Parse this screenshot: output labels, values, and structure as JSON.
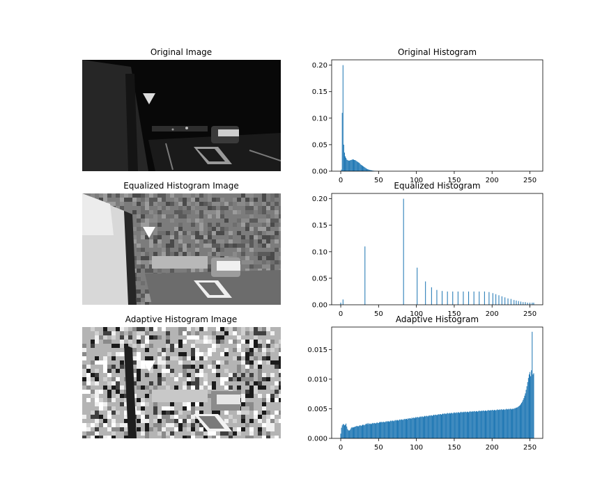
{
  "figure": {
    "image_titles": [
      "Original Image",
      "Equalized Histogram Image",
      "Adaptive Histogram Image"
    ],
    "bar_color": "#1f77b4"
  },
  "chart_data": [
    {
      "type": "bar",
      "title": "Original Histogram",
      "xlabel": "",
      "ylabel": "",
      "xlim": [
        -12,
        267
      ],
      "ylim": [
        0,
        0.21
      ],
      "xticks": [
        0,
        50,
        100,
        150,
        200,
        250
      ],
      "yticks": [
        0.0,
        0.05,
        0.1,
        0.15,
        0.2
      ],
      "ytick_format": 2,
      "bars": [
        [
          1,
          0.003
        ],
        [
          2,
          0.11
        ],
        [
          3,
          0.2
        ],
        [
          4,
          0.05
        ],
        [
          5,
          0.035
        ],
        [
          6,
          0.028
        ],
        [
          7,
          0.025
        ],
        [
          8,
          0.022
        ],
        [
          9,
          0.021
        ],
        [
          10,
          0.02
        ],
        [
          11,
          0.02
        ],
        [
          12,
          0.02
        ],
        [
          13,
          0.021
        ],
        [
          14,
          0.021
        ],
        [
          15,
          0.022
        ],
        [
          16,
          0.022
        ],
        [
          17,
          0.022
        ],
        [
          18,
          0.021
        ],
        [
          19,
          0.021
        ],
        [
          20,
          0.02
        ],
        [
          21,
          0.019
        ],
        [
          22,
          0.018
        ],
        [
          23,
          0.017
        ],
        [
          24,
          0.016
        ],
        [
          25,
          0.015
        ],
        [
          26,
          0.013
        ],
        [
          27,
          0.012
        ],
        [
          28,
          0.011
        ],
        [
          29,
          0.01
        ],
        [
          30,
          0.009
        ],
        [
          31,
          0.008
        ],
        [
          32,
          0.007
        ],
        [
          33,
          0.006
        ],
        [
          34,
          0.005
        ],
        [
          35,
          0.004
        ],
        [
          36,
          0.0035
        ],
        [
          37,
          0.003
        ],
        [
          38,
          0.0025
        ],
        [
          39,
          0.002
        ],
        [
          40,
          0.0018
        ],
        [
          41,
          0.0015
        ],
        [
          42,
          0.0012
        ],
        [
          43,
          0.001
        ],
        [
          44,
          0.0008
        ],
        [
          45,
          0.0006
        ],
        [
          46,
          0.0005
        ],
        [
          47,
          0.0004
        ],
        [
          48,
          0.0003
        ],
        [
          49,
          0.0002
        ],
        [
          50,
          0.0002
        ]
      ]
    },
    {
      "type": "bar",
      "title": "Equalized Histogram",
      "xlabel": "",
      "ylabel": "",
      "xlim": [
        -12,
        267
      ],
      "ylim": [
        0,
        0.21
      ],
      "xticks": [
        0,
        50,
        100,
        150,
        200,
        250
      ],
      "yticks": [
        0.0,
        0.05,
        0.1,
        0.15,
        0.2
      ],
      "ytick_format": 2,
      "bars": [
        [
          0,
          0.004
        ],
        [
          3,
          0.01
        ],
        [
          32,
          0.11
        ],
        [
          83,
          0.2
        ],
        [
          101,
          0.07
        ],
        [
          112,
          0.044
        ],
        [
          120,
          0.033
        ],
        [
          127,
          0.028
        ],
        [
          134,
          0.026
        ],
        [
          141,
          0.025
        ],
        [
          148,
          0.025
        ],
        [
          155,
          0.025
        ],
        [
          162,
          0.025
        ],
        [
          169,
          0.025
        ],
        [
          176,
          0.025
        ],
        [
          183,
          0.025
        ],
        [
          190,
          0.025
        ],
        [
          196,
          0.024
        ],
        [
          201,
          0.022
        ],
        [
          205,
          0.02
        ],
        [
          209,
          0.018
        ],
        [
          213,
          0.016
        ],
        [
          217,
          0.014
        ],
        [
          221,
          0.012
        ],
        [
          225,
          0.011
        ],
        [
          229,
          0.009
        ],
        [
          232,
          0.008
        ],
        [
          235,
          0.007
        ],
        [
          238,
          0.006
        ],
        [
          241,
          0.005
        ],
        [
          244,
          0.005
        ],
        [
          247,
          0.004
        ],
        [
          250,
          0.004
        ],
        [
          253,
          0.004
        ],
        [
          255,
          0.004
        ]
      ]
    },
    {
      "type": "bar",
      "title": "Adaptive Histogram",
      "xlabel": "",
      "ylabel": "",
      "xlim": [
        -12,
        267
      ],
      "ylim": [
        0,
        0.0188
      ],
      "xticks": [
        0,
        50,
        100,
        150,
        200,
        250
      ],
      "yticks": [
        0.0,
        0.005,
        0.01,
        0.015
      ],
      "ytick_format": 3,
      "bars": [
        [
          0,
          0.0008
        ],
        [
          1,
          0.0018
        ],
        [
          2,
          0.0022
        ],
        [
          3,
          0.0024
        ],
        [
          4,
          0.0024
        ],
        [
          5,
          0.0022
        ],
        [
          6,
          0.0023
        ],
        [
          7,
          0.0025
        ],
        [
          8,
          0.002
        ],
        [
          9,
          0.0016
        ],
        [
          10,
          0.0014
        ],
        [
          11,
          0.0013
        ],
        [
          12,
          0.0014
        ],
        [
          13,
          0.0016
        ],
        [
          14,
          0.0018
        ],
        [
          15,
          0.0019
        ],
        [
          16,
          0.0018
        ],
        [
          17,
          0.0019
        ],
        [
          18,
          0.0019
        ],
        [
          19,
          0.002
        ],
        [
          20,
          0.002
        ],
        [
          21,
          0.0021
        ],
        [
          22,
          0.0021
        ],
        [
          23,
          0.002
        ],
        [
          24,
          0.0021
        ],
        [
          25,
          0.0022
        ],
        [
          26,
          0.0022
        ],
        [
          27,
          0.0021
        ],
        [
          28,
          0.0022
        ],
        [
          29,
          0.0023
        ],
        [
          30,
          0.0023
        ],
        [
          31,
          0.0022
        ],
        [
          32,
          0.0023
        ],
        [
          33,
          0.0024
        ],
        [
          34,
          0.0025
        ],
        [
          35,
          0.0024
        ],
        [
          36,
          0.0026
        ],
        [
          37,
          0.0024
        ],
        [
          38,
          0.0025
        ],
        [
          39,
          0.0025
        ],
        [
          40,
          0.0024
        ],
        [
          41,
          0.0025
        ],
        [
          42,
          0.0026
        ],
        [
          43,
          0.0025
        ],
        [
          44,
          0.0026
        ],
        [
          45,
          0.0026
        ],
        [
          46,
          0.0025
        ],
        [
          47,
          0.0026
        ],
        [
          48,
          0.0027
        ],
        [
          49,
          0.0026
        ],
        [
          50,
          0.0026
        ],
        [
          51,
          0.0027
        ],
        [
          52,
          0.0028
        ],
        [
          53,
          0.0027
        ],
        [
          54,
          0.0028
        ],
        [
          55,
          0.0027
        ],
        [
          56,
          0.0028
        ],
        [
          57,
          0.0028
        ],
        [
          58,
          0.0027
        ],
        [
          59,
          0.0028
        ],
        [
          60,
          0.0029
        ],
        [
          61,
          0.0028
        ],
        [
          62,
          0.0029
        ],
        [
          63,
          0.0029
        ],
        [
          64,
          0.0028
        ],
        [
          65,
          0.0029
        ],
        [
          66,
          0.003
        ],
        [
          67,
          0.0029
        ],
        [
          68,
          0.003
        ],
        [
          69,
          0.003
        ],
        [
          70,
          0.0029
        ],
        [
          71,
          0.003
        ],
        [
          72,
          0.0031
        ],
        [
          73,
          0.003
        ],
        [
          74,
          0.0031
        ],
        [
          75,
          0.0031
        ],
        [
          76,
          0.003
        ],
        [
          77,
          0.0031
        ],
        [
          78,
          0.0032
        ],
        [
          79,
          0.0031
        ],
        [
          80,
          0.0032
        ],
        [
          81,
          0.0032
        ],
        [
          82,
          0.0031
        ],
        [
          83,
          0.0032
        ],
        [
          84,
          0.0033
        ],
        [
          85,
          0.0032
        ],
        [
          86,
          0.0033
        ],
        [
          87,
          0.0033
        ],
        [
          88,
          0.0032
        ],
        [
          89,
          0.0034
        ],
        [
          90,
          0.0033
        ],
        [
          91,
          0.0034
        ],
        [
          92,
          0.0034
        ],
        [
          93,
          0.0033
        ],
        [
          94,
          0.0035
        ],
        [
          95,
          0.0034
        ],
        [
          96,
          0.0035
        ],
        [
          97,
          0.0035
        ],
        [
          98,
          0.0034
        ],
        [
          99,
          0.0036
        ],
        [
          100,
          0.0035
        ],
        [
          101,
          0.0036
        ],
        [
          102,
          0.0036
        ],
        [
          103,
          0.0035
        ],
        [
          104,
          0.0036
        ],
        [
          105,
          0.0037
        ],
        [
          106,
          0.0036
        ],
        [
          107,
          0.0037
        ],
        [
          108,
          0.0037
        ],
        [
          109,
          0.0036
        ],
        [
          110,
          0.0037
        ],
        [
          111,
          0.0038
        ],
        [
          112,
          0.0037
        ],
        [
          113,
          0.0038
        ],
        [
          114,
          0.0038
        ],
        [
          115,
          0.0037
        ],
        [
          116,
          0.0038
        ],
        [
          117,
          0.0039
        ],
        [
          118,
          0.0038
        ],
        [
          119,
          0.0039
        ],
        [
          120,
          0.0039
        ],
        [
          121,
          0.0038
        ],
        [
          122,
          0.0039
        ],
        [
          123,
          0.004
        ],
        [
          124,
          0.0039
        ],
        [
          125,
          0.004
        ],
        [
          126,
          0.004
        ],
        [
          127,
          0.0039
        ],
        [
          128,
          0.004
        ],
        [
          129,
          0.0041
        ],
        [
          130,
          0.004
        ],
        [
          131,
          0.0041
        ],
        [
          132,
          0.0041
        ],
        [
          133,
          0.004
        ],
        [
          134,
          0.0041
        ],
        [
          135,
          0.0042
        ],
        [
          136,
          0.0041
        ],
        [
          137,
          0.0042
        ],
        [
          138,
          0.0042
        ],
        [
          139,
          0.0041
        ],
        [
          140,
          0.0042
        ],
        [
          141,
          0.0043
        ],
        [
          142,
          0.0042
        ],
        [
          143,
          0.0042
        ],
        [
          144,
          0.0043
        ],
        [
          145,
          0.0042
        ],
        [
          146,
          0.0043
        ],
        [
          147,
          0.0043
        ],
        [
          148,
          0.0042
        ],
        [
          149,
          0.0043
        ],
        [
          150,
          0.0044
        ],
        [
          151,
          0.0043
        ],
        [
          152,
          0.0043
        ],
        [
          153,
          0.0044
        ],
        [
          154,
          0.0043
        ],
        [
          155,
          0.0044
        ],
        [
          156,
          0.0044
        ],
        [
          157,
          0.0043
        ],
        [
          158,
          0.0044
        ],
        [
          159,
          0.0045
        ],
        [
          160,
          0.0044
        ],
        [
          161,
          0.0044
        ],
        [
          162,
          0.0045
        ],
        [
          163,
          0.0044
        ],
        [
          164,
          0.0045
        ],
        [
          165,
          0.0045
        ],
        [
          166,
          0.0044
        ],
        [
          167,
          0.0045
        ],
        [
          168,
          0.0045
        ],
        [
          169,
          0.0044
        ],
        [
          170,
          0.0045
        ],
        [
          171,
          0.0046
        ],
        [
          172,
          0.0045
        ],
        [
          173,
          0.0045
        ],
        [
          174,
          0.0046
        ],
        [
          175,
          0.0045
        ],
        [
          176,
          0.0046
        ],
        [
          177,
          0.0046
        ],
        [
          178,
          0.0045
        ],
        [
          179,
          0.0046
        ],
        [
          180,
          0.0046
        ],
        [
          181,
          0.0045
        ],
        [
          182,
          0.0046
        ],
        [
          183,
          0.0047
        ],
        [
          184,
          0.0046
        ],
        [
          185,
          0.0046
        ],
        [
          186,
          0.0047
        ],
        [
          187,
          0.0046
        ],
        [
          188,
          0.0047
        ],
        [
          189,
          0.0047
        ],
        [
          190,
          0.0046
        ],
        [
          191,
          0.0047
        ],
        [
          192,
          0.0047
        ],
        [
          193,
          0.0046
        ],
        [
          194,
          0.0047
        ],
        [
          195,
          0.0048
        ],
        [
          196,
          0.0047
        ],
        [
          197,
          0.0047
        ],
        [
          198,
          0.0048
        ],
        [
          199,
          0.0047
        ],
        [
          200,
          0.0048
        ],
        [
          201,
          0.0048
        ],
        [
          202,
          0.0047
        ],
        [
          203,
          0.0048
        ],
        [
          204,
          0.0048
        ],
        [
          205,
          0.0047
        ],
        [
          206,
          0.0048
        ],
        [
          207,
          0.0049
        ],
        [
          208,
          0.0048
        ],
        [
          209,
          0.0048
        ],
        [
          210,
          0.0049
        ],
        [
          211,
          0.0048
        ],
        [
          212,
          0.0049
        ],
        [
          213,
          0.0049
        ],
        [
          214,
          0.0048
        ],
        [
          215,
          0.0049
        ],
        [
          216,
          0.0049
        ],
        [
          217,
          0.0048
        ],
        [
          218,
          0.0049
        ],
        [
          219,
          0.005
        ],
        [
          220,
          0.0049
        ],
        [
          221,
          0.0049
        ],
        [
          222,
          0.005
        ],
        [
          223,
          0.0049
        ],
        [
          224,
          0.005
        ],
        [
          225,
          0.005
        ],
        [
          226,
          0.0049
        ],
        [
          227,
          0.005
        ],
        [
          228,
          0.005
        ],
        [
          229,
          0.005
        ],
        [
          230,
          0.0051
        ],
        [
          231,
          0.0051
        ],
        [
          232,
          0.0052
        ],
        [
          233,
          0.0052
        ],
        [
          234,
          0.0053
        ],
        [
          235,
          0.0054
        ],
        [
          236,
          0.0055
        ],
        [
          237,
          0.0056
        ],
        [
          238,
          0.0058
        ],
        [
          239,
          0.006
        ],
        [
          240,
          0.0062
        ],
        [
          241,
          0.0065
        ],
        [
          242,
          0.0068
        ],
        [
          243,
          0.0072
        ],
        [
          244,
          0.0076
        ],
        [
          245,
          0.0082
        ],
        [
          246,
          0.0088
        ],
        [
          247,
          0.0095
        ],
        [
          248,
          0.0102
        ],
        [
          249,
          0.0108
        ],
        [
          250,
          0.0112
        ],
        [
          251,
          0.0105
        ],
        [
          252,
          0.0115
        ],
        [
          253,
          0.018
        ],
        [
          254,
          0.0108
        ],
        [
          255,
          0.011
        ]
      ]
    }
  ]
}
